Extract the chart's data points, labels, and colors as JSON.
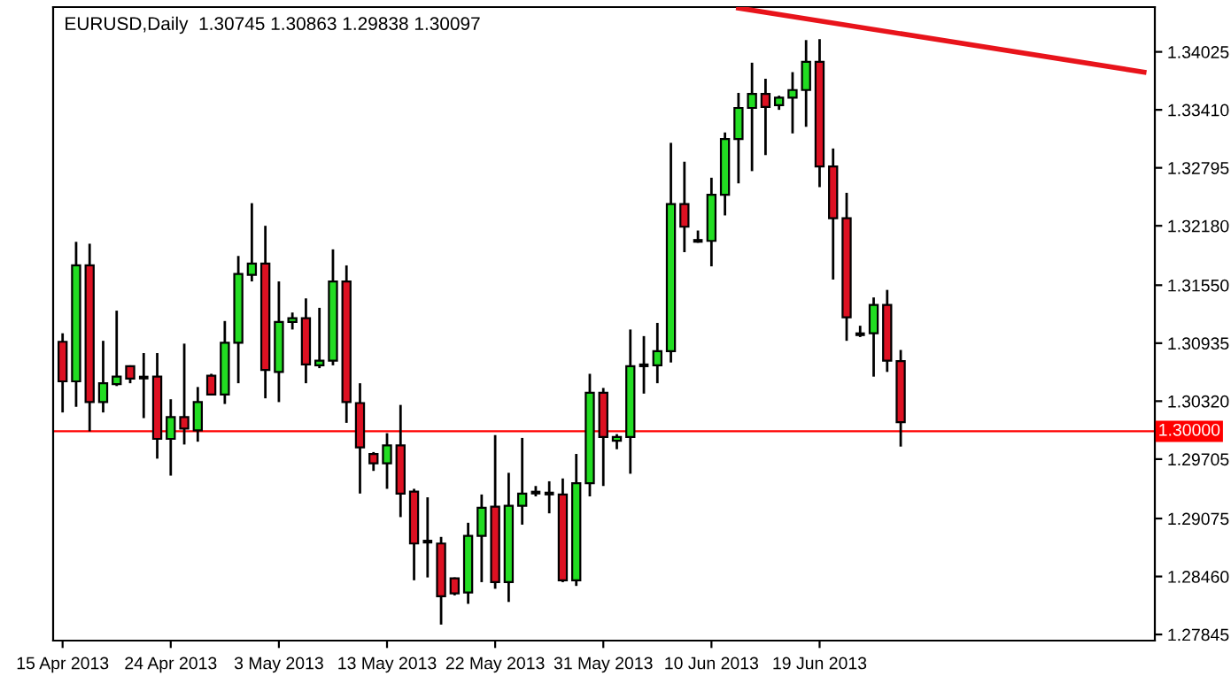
{
  "chart_data": {
    "type": "candlestick",
    "title": "EURUSD,Daily  1.30745 1.30863 1.29838 1.30097",
    "categories": [
      "15 Apr 2013",
      null,
      null,
      null,
      null,
      null,
      null,
      null,
      "24 Apr 2013",
      null,
      null,
      null,
      null,
      null,
      null,
      null,
      "3 May 2013",
      null,
      null,
      null,
      null,
      null,
      null,
      null,
      "13 May 2013",
      null,
      null,
      null,
      null,
      null,
      null,
      null,
      "22 May 2013",
      null,
      null,
      null,
      null,
      null,
      null,
      null,
      "31 May 2013",
      null,
      null,
      null,
      null,
      null,
      null,
      null,
      "10 Jun 2013",
      null,
      null,
      null,
      null,
      null,
      null,
      null,
      "19 Jun 2013",
      null,
      null,
      null,
      null,
      null,
      null,
      null,
      null,
      null,
      null,
      null,
      null,
      null,
      null,
      null,
      null,
      null,
      null,
      null,
      null,
      null,
      null,
      null,
      null
    ],
    "ohlc": [
      [
        1.3095,
        1.3104,
        1.302,
        1.3053
      ],
      [
        1.3053,
        1.3201,
        1.3026,
        1.3176
      ],
      [
        1.3176,
        1.3199,
        1.3,
        1.3031
      ],
      [
        1.3031,
        1.3096,
        1.302,
        1.3051
      ],
      [
        1.305,
        1.3128,
        1.3048,
        1.3058
      ],
      [
        1.3069,
        1.307,
        1.3051,
        1.3056
      ],
      [
        1.3057,
        1.3083,
        1.3014,
        1.3057
      ],
      [
        1.3058,
        1.3083,
        1.2971,
        1.2992
      ],
      [
        1.2992,
        1.3034,
        1.2953,
        1.3015
      ],
      [
        1.3015,
        1.3093,
        1.2986,
        1.3003
      ],
      [
        1.3001,
        1.3047,
        1.2989,
        1.3031
      ],
      [
        1.3059,
        1.3061,
        1.3038,
        1.3039
      ],
      [
        1.3039,
        1.3117,
        1.3029,
        1.3094
      ],
      [
        1.3094,
        1.3186,
        1.3051,
        1.3167
      ],
      [
        1.3166,
        1.3242,
        1.3159,
        1.3178
      ],
      [
        1.3178,
        1.3218,
        1.3035,
        1.3065
      ],
      [
        1.3063,
        1.3159,
        1.3031,
        1.3116
      ],
      [
        1.3116,
        1.3126,
        1.3108,
        1.312
      ],
      [
        1.312,
        1.3141,
        1.3051,
        1.3071
      ],
      [
        1.307,
        1.3131,
        1.3067,
        1.3075
      ],
      [
        1.3075,
        1.3193,
        1.307,
        1.3159
      ],
      [
        1.3159,
        1.3176,
        1.3009,
        1.3031
      ],
      [
        1.303,
        1.3051,
        1.2934,
        1.2983
      ],
      [
        1.2976,
        1.2978,
        1.2958,
        1.2966
      ],
      [
        1.2966,
        1.2998,
        1.2939,
        1.2985
      ],
      [
        1.2985,
        1.3028,
        1.2909,
        1.2934
      ],
      [
        1.2936,
        1.2939,
        1.2842,
        1.2881
      ],
      [
        1.2883,
        1.293,
        1.2845,
        1.2883
      ],
      [
        1.2881,
        1.2888,
        1.2795,
        1.2825
      ],
      [
        1.2844,
        1.2845,
        1.2826,
        1.2828
      ],
      [
        1.2829,
        1.2903,
        1.2817,
        1.2889
      ],
      [
        1.2889,
        1.2933,
        1.284,
        1.2919
      ],
      [
        1.292,
        1.2996,
        1.2833,
        1.284
      ],
      [
        1.284,
        1.2956,
        1.2819,
        1.2921
      ],
      [
        1.2921,
        1.2993,
        1.2901,
        1.2934
      ],
      [
        1.2935,
        1.2942,
        1.2931,
        1.2935
      ],
      [
        1.2934,
        1.2947,
        1.2913,
        1.2934
      ],
      [
        1.2933,
        1.295,
        1.284,
        1.2842
      ],
      [
        1.2842,
        1.2976,
        1.2836,
        1.2945
      ],
      [
        1.2945,
        1.3061,
        1.2931,
        1.3041
      ],
      [
        1.3041,
        1.3046,
        1.2942,
        1.2994
      ],
      [
        1.299,
        1.2997,
        1.2981,
        1.2994
      ],
      [
        1.2994,
        1.3108,
        1.2955,
        1.3069
      ],
      [
        1.307,
        1.3101,
        1.304,
        1.307
      ],
      [
        1.307,
        1.3115,
        1.3051,
        1.3085
      ],
      [
        1.3085,
        1.3306,
        1.3073,
        1.3241
      ],
      [
        1.3241,
        1.3286,
        1.319,
        1.3217
      ],
      [
        1.3202,
        1.3213,
        1.32,
        1.3202
      ],
      [
        1.3202,
        1.3269,
        1.3175,
        1.3251
      ],
      [
        1.3251,
        1.3317,
        1.3229,
        1.331
      ],
      [
        1.331,
        1.3359,
        1.3263,
        1.3343
      ],
      [
        1.3343,
        1.3391,
        1.3276,
        1.3358
      ],
      [
        1.3358,
        1.3374,
        1.3293,
        1.3344
      ],
      [
        1.3346,
        1.3356,
        1.3341,
        1.3354
      ],
      [
        1.3354,
        1.3381,
        1.3316,
        1.3362
      ],
      [
        1.3362,
        1.3415,
        1.3323,
        1.3392
      ],
      [
        1.3392,
        1.3416,
        1.3259,
        1.3281
      ],
      [
        1.3281,
        1.33,
        1.3161,
        1.3226
      ],
      [
        1.3226,
        1.3253,
        1.3096,
        1.3121
      ],
      [
        1.3103,
        1.3112,
        1.31,
        1.3103
      ],
      [
        1.3104,
        1.3142,
        1.3058,
        1.3134
      ],
      [
        1.3134,
        1.315,
        1.3063,
        1.3075
      ],
      [
        1.30745,
        1.30863,
        1.29838,
        1.30097
      ],
      null,
      null,
      null,
      null,
      null,
      null,
      null,
      null,
      null,
      null,
      null,
      null,
      null,
      null,
      null,
      null,
      null,
      null
    ],
    "colors": [
      "#dd1122",
      "#22dd22",
      "#dd1122",
      "#22dd22",
      "#22dd22",
      "#dd1122",
      "#000000",
      "#dd1122",
      "#22dd22",
      "#dd1122",
      "#22dd22",
      "#dd1122",
      "#22dd22",
      "#22dd22",
      "#22dd22",
      "#dd1122",
      "#22dd22",
      "#22dd22",
      "#dd1122",
      "#22dd22",
      "#22dd22",
      "#dd1122",
      "#dd1122",
      "#dd1122",
      "#22dd22",
      "#dd1122",
      "#dd1122",
      "#000000",
      "#dd1122",
      "#dd1122",
      "#22dd22",
      "#22dd22",
      "#dd1122",
      "#22dd22",
      "#22dd22",
      "#000000",
      "#000000",
      "#dd1122",
      "#22dd22",
      "#22dd22",
      "#dd1122",
      "#22dd22",
      "#22dd22",
      "#000000",
      "#22dd22",
      "#22dd22",
      "#dd1122",
      "#000000",
      "#22dd22",
      "#22dd22",
      "#22dd22",
      "#22dd22",
      "#dd1122",
      "#22dd22",
      "#22dd22",
      "#22dd22",
      "#dd1122",
      "#dd1122",
      "#dd1122",
      "#000000",
      "#22dd22",
      "#dd1122",
      "#dd1122",
      null,
      null,
      null,
      null,
      null,
      null,
      null,
      null,
      null,
      null,
      null,
      null,
      null,
      null,
      null,
      null,
      null,
      null
    ],
    "series": [
      {
        "type": "line",
        "color": "#e8141b",
        "values": [
          null,
          null,
          null,
          null,
          null,
          null,
          null,
          null,
          null,
          null,
          null,
          null,
          null,
          null,
          null,
          null,
          null,
          null,
          null,
          null,
          null,
          null,
          null,
          null,
          null,
          null,
          null,
          null,
          null,
          null,
          null,
          null,
          null,
          null,
          null,
          null,
          null,
          null,
          null,
          null,
          null,
          null,
          null,
          null,
          null,
          null,
          null,
          null,
          null,
          null,
          1.3449,
          null,
          null,
          null,
          null,
          null,
          null,
          null,
          null,
          null,
          null,
          null,
          null,
          null,
          null,
          null,
          null,
          null,
          null,
          null,
          null,
          null,
          null,
          null,
          null,
          null,
          null,
          null,
          null,
          null,
          1.3381
        ]
      }
    ],
    "ylim": [
      1.2778,
      1.345
    ],
    "yticks": [
      {
        "value": 1.34025,
        "label": "1.34025"
      },
      {
        "value": 1.3341,
        "label": "1.33410"
      },
      {
        "value": 1.32795,
        "label": "1.32795"
      },
      {
        "value": 1.3218,
        "label": "1.32180"
      },
      {
        "value": 1.3155,
        "label": "1.31550"
      },
      {
        "value": 1.30935,
        "label": "1.30935"
      },
      {
        "value": 1.3032,
        "label": "1.30320"
      },
      {
        "value": 1.29705,
        "label": "1.29705"
      },
      {
        "value": 1.29075,
        "label": "1.29075"
      },
      {
        "value": 1.2846,
        "label": "1.28460"
      },
      {
        "value": 1.27845,
        "label": "1.27845"
      }
    ],
    "ref_lines": [
      {
        "axis": "y",
        "value": 1.3,
        "label": "1.30000",
        "color": "#ff0000"
      }
    ],
    "grid": false,
    "legend": false
  }
}
